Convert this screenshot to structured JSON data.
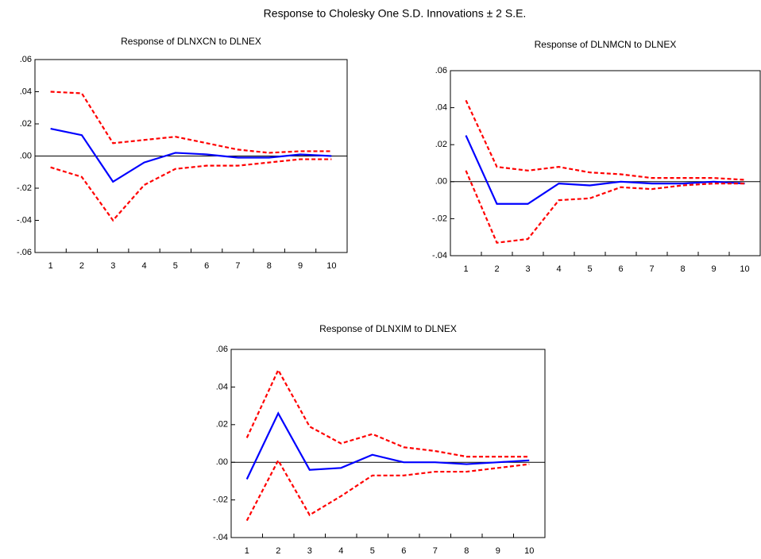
{
  "title": "Response to Cholesky One S.D. Innovations ± 2 S.E.",
  "chart_data": [
    {
      "type": "line",
      "title": "Response of DLNXCN to DLNEX",
      "categories": [
        "1",
        "2",
        "3",
        "4",
        "5",
        "6",
        "7",
        "8",
        "9",
        "10"
      ],
      "ylim": [
        -0.06,
        0.06
      ],
      "yticks": [
        {
          "value": -0.06,
          "label": "-.06"
        },
        {
          "value": -0.04,
          "label": "-.04"
        },
        {
          "value": -0.02,
          "label": "-.02"
        },
        {
          "value": 0,
          "label": ".00"
        },
        {
          "value": 0.02,
          "label": ".02"
        },
        {
          "value": 0.04,
          "label": ".04"
        },
        {
          "value": 0.06,
          "label": ".06"
        }
      ],
      "zero_line": true,
      "series": [
        {
          "color": "#0000ff",
          "style": "solid",
          "values": [
            0.017,
            0.013,
            -0.016,
            -0.004,
            0.002,
            0.001,
            -0.001,
            -0.001,
            0.001,
            0.0
          ]
        },
        {
          "color": "#ff0000",
          "style": "dashed",
          "values": [
            0.04,
            0.039,
            0.008,
            0.01,
            0.012,
            0.008,
            0.004,
            0.002,
            0.003,
            0.003
          ]
        },
        {
          "color": "#ff0000",
          "style": "dashed",
          "values": [
            -0.007,
            -0.013,
            -0.04,
            -0.018,
            -0.008,
            -0.006,
            -0.006,
            -0.004,
            -0.002,
            -0.002
          ]
        }
      ]
    },
    {
      "type": "line",
      "title": "Response of DLNMCN to DLNEX",
      "categories": [
        "1",
        "2",
        "3",
        "4",
        "5",
        "6",
        "7",
        "8",
        "9",
        "10"
      ],
      "ylim": [
        -0.04,
        0.06
      ],
      "yticks": [
        {
          "value": -0.04,
          "label": "-.04"
        },
        {
          "value": -0.02,
          "label": "-.02"
        },
        {
          "value": 0,
          "label": ".00"
        },
        {
          "value": 0.02,
          "label": ".02"
        },
        {
          "value": 0.04,
          "label": ".04"
        },
        {
          "value": 0.06,
          "label": ".06"
        }
      ],
      "zero_line": true,
      "series": [
        {
          "color": "#0000ff",
          "style": "solid",
          "values": [
            0.025,
            -0.012,
            -0.012,
            -0.001,
            -0.002,
            0.0,
            -0.001,
            -0.001,
            0.0,
            -0.001
          ]
        },
        {
          "color": "#ff0000",
          "style": "dashed",
          "values": [
            0.044,
            0.008,
            0.006,
            0.008,
            0.005,
            0.004,
            0.002,
            0.002,
            0.002,
            0.001
          ]
        },
        {
          "color": "#ff0000",
          "style": "dashed",
          "values": [
            0.006,
            -0.033,
            -0.031,
            -0.01,
            -0.009,
            -0.003,
            -0.004,
            -0.002,
            -0.001,
            -0.001
          ]
        }
      ]
    },
    {
      "type": "line",
      "title": "Response of DLNXIM to DLNEX",
      "categories": [
        "1",
        "2",
        "3",
        "4",
        "5",
        "6",
        "7",
        "8",
        "9",
        "10"
      ],
      "ylim": [
        -0.04,
        0.06
      ],
      "yticks": [
        {
          "value": -0.04,
          "label": "-.04"
        },
        {
          "value": -0.02,
          "label": "-.02"
        },
        {
          "value": 0,
          "label": ".00"
        },
        {
          "value": 0.02,
          "label": ".02"
        },
        {
          "value": 0.04,
          "label": ".04"
        },
        {
          "value": 0.06,
          "label": ".06"
        }
      ],
      "zero_line": true,
      "series": [
        {
          "color": "#0000ff",
          "style": "solid",
          "values": [
            -0.009,
            0.026,
            -0.004,
            -0.003,
            0.004,
            0.0,
            0.0,
            -0.001,
            0.0,
            0.001
          ]
        },
        {
          "color": "#ff0000",
          "style": "dashed",
          "values": [
            0.013,
            0.049,
            0.019,
            0.01,
            0.015,
            0.008,
            0.006,
            0.003,
            0.003,
            0.003
          ]
        },
        {
          "color": "#ff0000",
          "style": "dashed",
          "values": [
            -0.031,
            0.001,
            -0.028,
            -0.018,
            -0.007,
            -0.007,
            -0.005,
            -0.005,
            -0.003,
            -0.001
          ]
        }
      ]
    }
  ]
}
